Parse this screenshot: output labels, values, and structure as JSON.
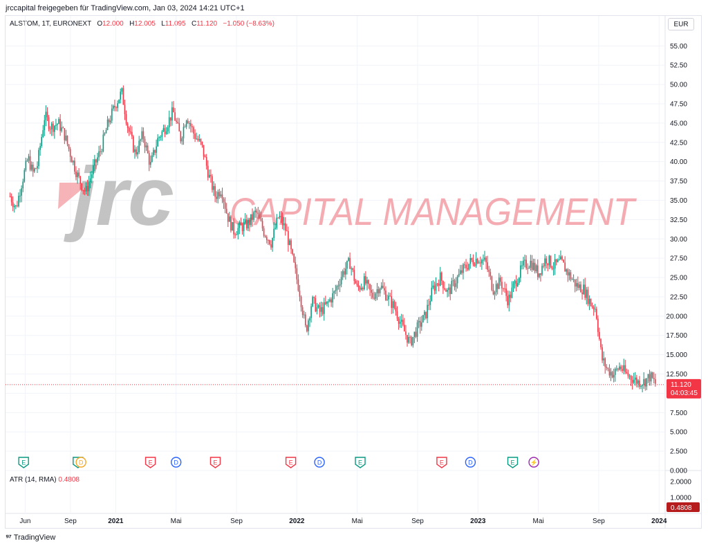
{
  "header": {
    "title": "jrccapital freigegeben für TradingView.com, Jan 03, 2024 14:21 UTC+1"
  },
  "legend": {
    "symbol": "ALSTOM, 1T, EURONEXT",
    "o_label": "O",
    "o": "12.000",
    "h_label": "H",
    "h": "12.005",
    "l_label": "L",
    "l": "11.095",
    "c_label": "C",
    "c": "11.120",
    "change": "−1.050 (−8.63%)"
  },
  "currency": "EUR",
  "watermark": {
    "jrc": "jrc",
    "text": "CAPITAL MANAGEMENT"
  },
  "price_badge": {
    "value": "11.120",
    "countdown": "04:03:45"
  },
  "atr": {
    "label": "ATR (14, RMA)",
    "value": "0.4808",
    "badge": "0.4808",
    "ticks": [
      "2.0000",
      "1.0000"
    ]
  },
  "footer": {
    "brand": "TradingView"
  },
  "colors": {
    "up": "#089981",
    "down": "#f23645",
    "event_earnings_up": "#089981",
    "event_earnings_down": "#f23645",
    "event_dividend": "#2962ff",
    "event_split": "#9c27b0"
  },
  "events": [
    {
      "t": 0.9,
      "type": "E",
      "color": "#089981"
    },
    {
      "t": 4.5,
      "type": "E",
      "color": "#089981"
    },
    {
      "t": 4.7,
      "type": "D",
      "color": "#f5a623"
    },
    {
      "t": 9.3,
      "type": "E",
      "color": "#f23645"
    },
    {
      "t": 11.0,
      "type": "D",
      "color": "#2962ff"
    },
    {
      "t": 13.6,
      "type": "E",
      "color": "#f23645"
    },
    {
      "t": 18.6,
      "type": "E",
      "color": "#f23645"
    },
    {
      "t": 20.5,
      "type": "D",
      "color": "#2962ff"
    },
    {
      "t": 23.2,
      "type": "E",
      "color": "#089981"
    },
    {
      "t": 28.6,
      "type": "E",
      "color": "#f23645"
    },
    {
      "t": 30.5,
      "type": "D",
      "color": "#2962ff"
    },
    {
      "t": 33.3,
      "type": "E",
      "color": "#089981"
    },
    {
      "t": 34.7,
      "type": "⚡",
      "color": "#9c27b0"
    }
  ],
  "chart_data": {
    "type": "candlestick",
    "symbol": "ALSTOM",
    "interval": "1T",
    "exchange": "EURONEXT",
    "currency": "EUR",
    "ylim": [
      0,
      57
    ],
    "y_ticks": [
      "55.00",
      "52.50",
      "50.00",
      "47.50",
      "45.00",
      "42.50",
      "40.00",
      "37.50",
      "35.00",
      "32.50",
      "30.00",
      "27.50",
      "25.00",
      "22.50",
      "20.000",
      "17.500",
      "15.000",
      "12.500",
      "10.000",
      "7.500",
      "5.000",
      "2.500",
      "0.000"
    ],
    "x_ticks": [
      {
        "label": "Jun",
        "t": 1.0
      },
      {
        "label": "Sep",
        "t": 4.0
      },
      {
        "label": "2021",
        "t": 7.0
      },
      {
        "label": "Mai",
        "t": 11.0
      },
      {
        "label": "Sep",
        "t": 15.0
      },
      {
        "label": "2022",
        "t": 19.0
      },
      {
        "label": "Mai",
        "t": 23.0
      },
      {
        "label": "Sep",
        "t": 27.0
      },
      {
        "label": "2023",
        "t": 31.0
      },
      {
        "label": "Mai",
        "t": 35.0
      },
      {
        "label": "Sep",
        "t": 39.0
      },
      {
        "label": "2024",
        "t": 43.0
      }
    ],
    "x_tick_labels_bold": [
      "2021",
      "2022",
      "2023",
      "2024"
    ],
    "x_start_month": "2020-05",
    "close_path": [
      [
        0,
        35.5
      ],
      [
        0.4,
        34.0
      ],
      [
        0.8,
        37.5
      ],
      [
        1.2,
        40.5
      ],
      [
        1.5,
        38.5
      ],
      [
        1.8,
        39.5
      ],
      [
        2.3,
        46.0
      ],
      [
        2.7,
        44.5
      ],
      [
        3.2,
        45.0
      ],
      [
        3.6,
        43.5
      ],
      [
        4.0,
        41.0
      ],
      [
        4.5,
        38.0
      ],
      [
        5.0,
        36.0
      ],
      [
        5.5,
        39.0
      ],
      [
        6.0,
        41.5
      ],
      [
        6.5,
        45.0
      ],
      [
        7.0,
        47.5
      ],
      [
        7.4,
        49.0
      ],
      [
        7.8,
        44.5
      ],
      [
        8.3,
        41.0
      ],
      [
        8.8,
        43.5
      ],
      [
        9.3,
        39.5
      ],
      [
        9.8,
        43.0
      ],
      [
        10.3,
        44.5
      ],
      [
        10.8,
        46.5
      ],
      [
        11.3,
        43.0
      ],
      [
        11.7,
        46.0
      ],
      [
        12.2,
        43.5
      ],
      [
        12.7,
        42.0
      ],
      [
        13.2,
        38.0
      ],
      [
        13.6,
        35.5
      ],
      [
        14.0,
        36.5
      ],
      [
        14.4,
        33.0
      ],
      [
        14.8,
        31.0
      ],
      [
        15.3,
        31.5
      ],
      [
        15.8,
        32.0
      ],
      [
        16.3,
        33.5
      ],
      [
        16.8,
        31.0
      ],
      [
        17.3,
        29.5
      ],
      [
        17.8,
        33.0
      ],
      [
        18.3,
        31.0
      ],
      [
        18.7,
        27.5
      ],
      [
        19.2,
        23.0
      ],
      [
        19.6,
        18.0
      ],
      [
        20.0,
        22.0
      ],
      [
        20.5,
        20.5
      ],
      [
        21.0,
        21.5
      ],
      [
        21.5,
        23.0
      ],
      [
        22.0,
        25.5
      ],
      [
        22.5,
        27.0
      ],
      [
        23.0,
        23.5
      ],
      [
        23.5,
        24.5
      ],
      [
        24.0,
        22.5
      ],
      [
        24.5,
        24.0
      ],
      [
        25.0,
        22.5
      ],
      [
        25.5,
        21.0
      ],
      [
        26.0,
        18.5
      ],
      [
        26.5,
        16.5
      ],
      [
        27.0,
        18.5
      ],
      [
        27.5,
        20.0
      ],
      [
        28.0,
        23.5
      ],
      [
        28.5,
        25.0
      ],
      [
        29.0,
        23.0
      ],
      [
        29.5,
        24.5
      ],
      [
        30.0,
        26.0
      ],
      [
        30.5,
        27.0
      ],
      [
        31.0,
        27.5
      ],
      [
        31.5,
        27.0
      ],
      [
        32.0,
        23.5
      ],
      [
        32.5,
        24.5
      ],
      [
        33.0,
        22.0
      ],
      [
        33.5,
        24.5
      ],
      [
        34.0,
        26.5
      ],
      [
        34.5,
        27.0
      ],
      [
        35.0,
        25.5
      ],
      [
        35.5,
        27.5
      ],
      [
        36.0,
        26.5
      ],
      [
        36.5,
        27.0
      ],
      [
        37.0,
        25.5
      ],
      [
        37.5,
        24.0
      ],
      [
        38.0,
        23.5
      ],
      [
        38.5,
        21.5
      ],
      [
        38.8,
        21.0
      ],
      [
        39.2,
        14.5
      ],
      [
        39.6,
        13.0
      ],
      [
        40.0,
        12.5
      ],
      [
        40.4,
        13.5
      ],
      [
        40.8,
        12.5
      ],
      [
        41.2,
        12.0
      ],
      [
        41.6,
        11.5
      ],
      [
        42.0,
        11.5
      ],
      [
        42.4,
        12.2
      ],
      [
        42.8,
        11.12
      ]
    ],
    "last_close": 11.12,
    "atr_path": [
      [
        0,
        1.3
      ],
      [
        6,
        1.5
      ],
      [
        12,
        1.2
      ],
      [
        19,
        1.6
      ],
      [
        26,
        0.9
      ],
      [
        32,
        0.9
      ],
      [
        38,
        0.8
      ],
      [
        39.2,
        1.4
      ],
      [
        42.8,
        0.48
      ]
    ],
    "atr_ylim": [
      0,
      2.6
    ],
    "grid": true
  }
}
